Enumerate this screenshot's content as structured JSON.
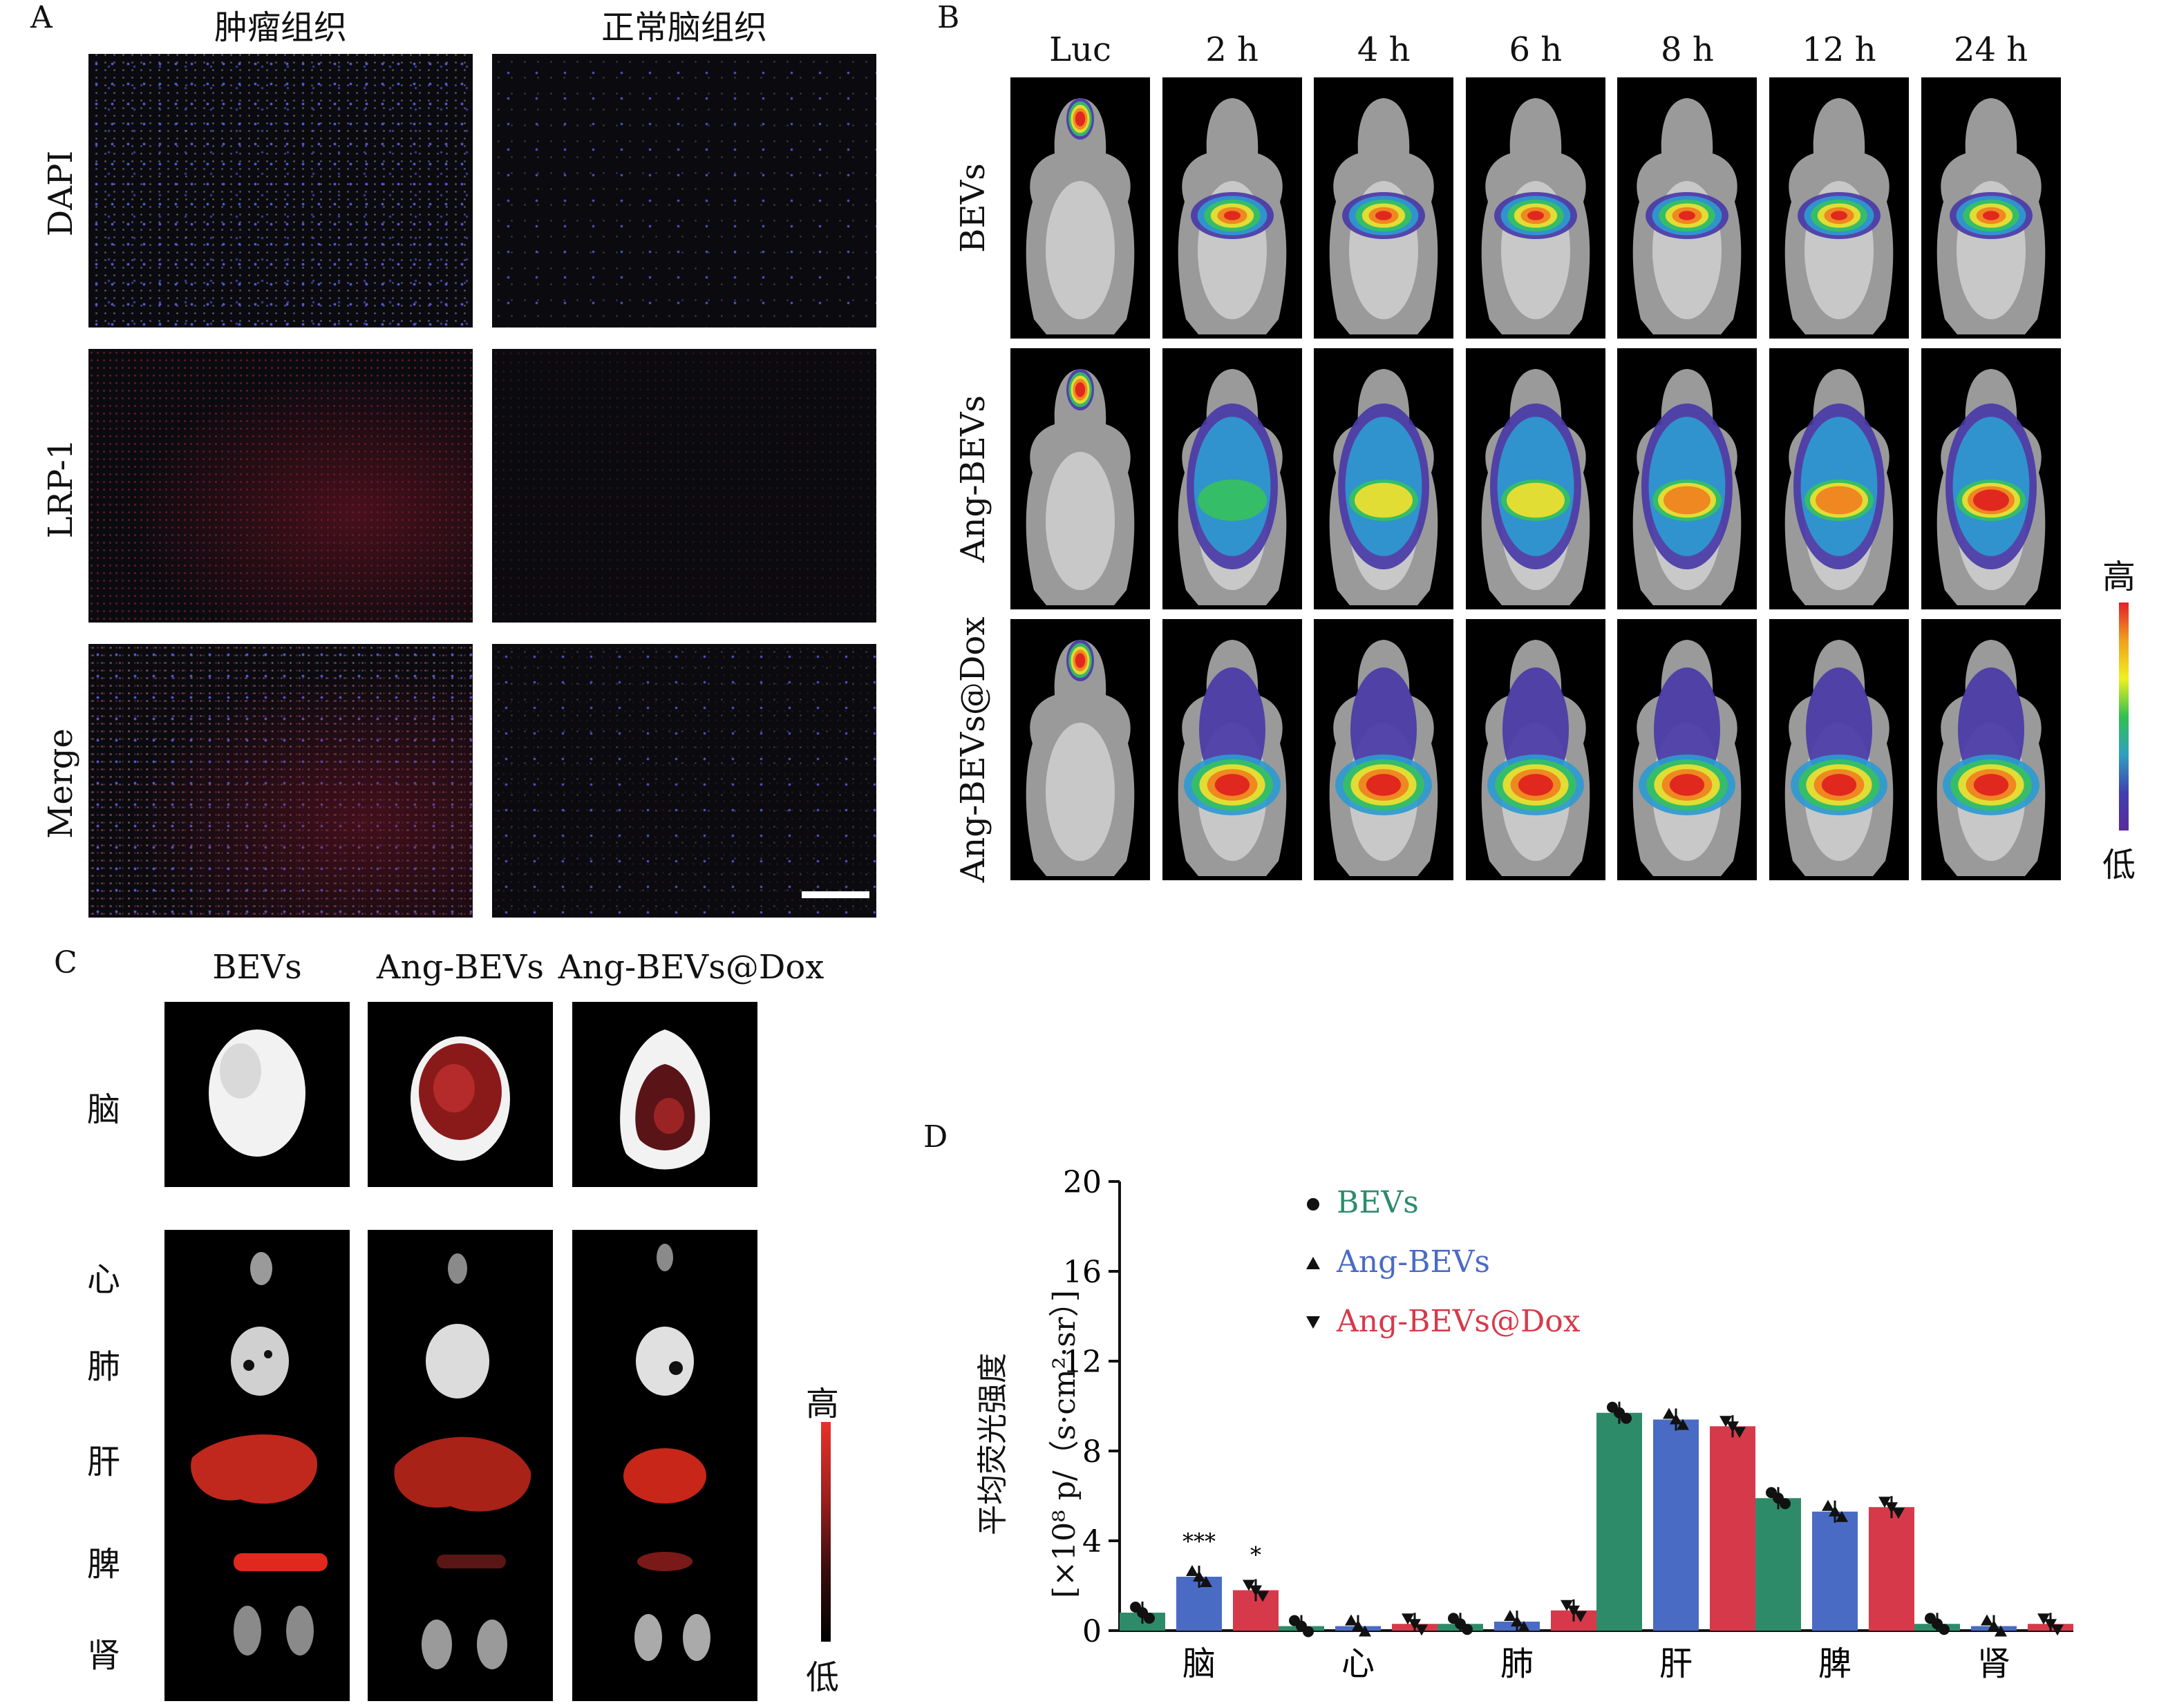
{
  "panelA": {
    "label": "A",
    "col_titles": [
      "肿瘤组织",
      "正常脑组织"
    ],
    "row_labels": [
      "DAPI",
      "LRP-1",
      "Merge"
    ]
  },
  "panelB": {
    "label": "B",
    "col_titles": [
      "Luc",
      "2 h",
      "4 h",
      "6 h",
      "8 h",
      "12 h",
      "24 h"
    ],
    "row_labels": [
      "BEVs",
      "Ang-BEVs",
      "Ang-BEVs@Dox"
    ],
    "scale_high": "高",
    "scale_low": "低"
  },
  "panelC": {
    "label": "C",
    "col_titles": [
      "BEVs",
      "Ang-BEVs",
      "Ang-BEVs@Dox"
    ],
    "brain_label": "脑",
    "organ_labels": [
      "心",
      "肺",
      "肝",
      "脾",
      "肾"
    ],
    "scale_high": "高",
    "scale_low": "低"
  },
  "panelD": {
    "label": "D",
    "ylabel_line1": "平均荧光强度",
    "ylabel_line2": "[×10⁸ p/（s·cm²·sr）]"
  },
  "chart_data": {
    "type": "bar",
    "categories": [
      "脑",
      "心",
      "肺",
      "肝",
      "脾",
      "肾"
    ],
    "series": [
      {
        "name": "BEVs",
        "color": "#2e8b6a",
        "marker": "circle",
        "values": [
          0.8,
          0.2,
          0.3,
          9.7,
          5.9,
          0.3
        ]
      },
      {
        "name": "Ang-BEVs",
        "color": "#4a6bc4",
        "marker": "triangle-up",
        "values": [
          2.4,
          0.2,
          0.4,
          9.4,
          5.3,
          0.2
        ]
      },
      {
        "name": "Ang-BEVs@Dox",
        "color": "#d63a4a",
        "marker": "triangle-down",
        "values": [
          1.8,
          0.3,
          0.9,
          9.1,
          5.5,
          0.3
        ]
      }
    ],
    "ylim": [
      0,
      20
    ],
    "yticks": [
      0,
      4,
      8,
      12,
      16,
      20
    ],
    "annotations": [
      {
        "category": "脑",
        "series": "Ang-BEVs",
        "text": "***"
      },
      {
        "category": "脑",
        "series": "Ang-BEVs@Dox",
        "text": "*"
      }
    ],
    "legend_position": "top-center"
  }
}
